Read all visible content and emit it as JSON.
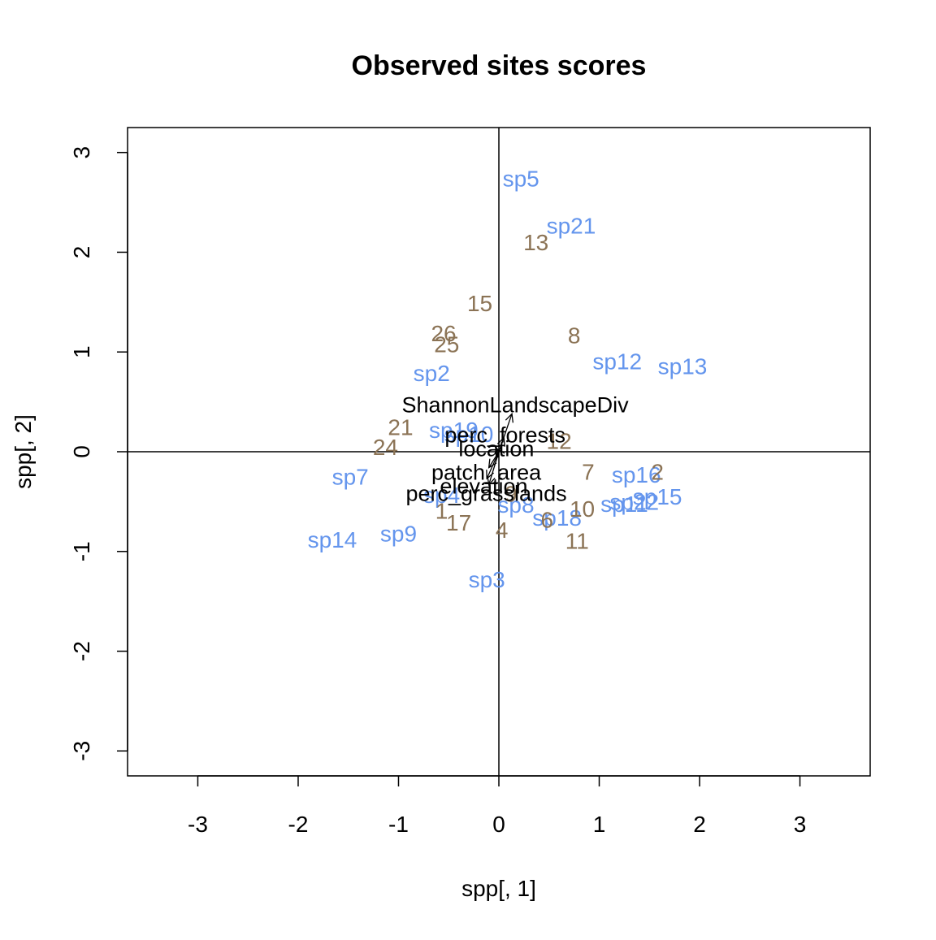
{
  "chart_data": {
    "type": "scatter",
    "title": "Observed sites scores",
    "xlabel": "spp[, 1]",
    "ylabel": "spp[, 2]",
    "xlim": [
      -3.7,
      3.7
    ],
    "ylim": [
      -3.25,
      3.25
    ],
    "xticks": [
      -3,
      -2,
      -1,
      0,
      1,
      2,
      3
    ],
    "yticks": [
      -3,
      -2,
      -1,
      0,
      1,
      2,
      3
    ],
    "reference_lines": {
      "x": 0,
      "y": 0
    },
    "colors": {
      "species": "#6495ED",
      "sites": "#8B7355",
      "env": "#000000"
    },
    "series": [
      {
        "role": "species",
        "points": [
          {
            "label": "sp5",
            "x": 0.22,
            "y": 2.74
          },
          {
            "label": "sp21",
            "x": 0.72,
            "y": 2.27
          },
          {
            "label": "sp12",
            "x": 1.18,
            "y": 0.91
          },
          {
            "label": "sp13",
            "x": 1.83,
            "y": 0.86
          },
          {
            "label": "sp2",
            "x": -0.67,
            "y": 0.79
          },
          {
            "label": "sp19",
            "x": -0.45,
            "y": 0.22
          },
          {
            "label": "sp10",
            "x": -0.3,
            "y": 0.18
          },
          {
            "label": "sp7",
            "x": -1.48,
            "y": -0.25
          },
          {
            "label": "sp16",
            "x": 1.37,
            "y": -0.23
          },
          {
            "label": "sp15",
            "x": 1.58,
            "y": -0.45
          },
          {
            "label": "sp22",
            "x": 1.35,
            "y": -0.5
          },
          {
            "label": "sp11",
            "x": 1.25,
            "y": -0.52
          },
          {
            "label": "sp4",
            "x": -0.57,
            "y": -0.43
          },
          {
            "label": "sp8",
            "x": 0.17,
            "y": -0.53
          },
          {
            "label": "sp18",
            "x": 0.58,
            "y": -0.66
          },
          {
            "label": "sp9",
            "x": -1.0,
            "y": -0.82
          },
          {
            "label": "sp14",
            "x": -1.66,
            "y": -0.88
          },
          {
            "label": "sp3",
            "x": -0.12,
            "y": -1.28
          }
        ]
      },
      {
        "role": "sites",
        "points": [
          {
            "label": "13",
            "x": 0.37,
            "y": 2.1
          },
          {
            "label": "15",
            "x": -0.19,
            "y": 1.49
          },
          {
            "label": "26",
            "x": -0.55,
            "y": 1.19
          },
          {
            "label": "25",
            "x": -0.52,
            "y": 1.08
          },
          {
            "label": "8",
            "x": 0.75,
            "y": 1.17
          },
          {
            "label": "21",
            "x": -0.98,
            "y": 0.25
          },
          {
            "label": "12",
            "x": 0.6,
            "y": 0.11
          },
          {
            "label": "24",
            "x": -1.13,
            "y": 0.05
          },
          {
            "label": "7",
            "x": 0.89,
            "y": -0.2
          },
          {
            "label": "2",
            "x": 1.58,
            "y": -0.2
          },
          {
            "label": "10",
            "x": 0.83,
            "y": -0.57
          },
          {
            "label": "9",
            "x": 0.12,
            "y": -0.42
          },
          {
            "label": "6",
            "x": 0.48,
            "y": -0.68
          },
          {
            "label": "4",
            "x": 0.03,
            "y": -0.78
          },
          {
            "label": "11",
            "x": 0.78,
            "y": -0.89
          },
          {
            "label": "17",
            "x": -0.4,
            "y": -0.71
          },
          {
            "label": "1",
            "x": -0.57,
            "y": -0.59
          }
        ]
      },
      {
        "role": "env",
        "arrows": [
          {
            "label": "ShannonLandscapeDiv",
            "x": 0.13,
            "y": 0.38
          },
          {
            "label": "perc_forests",
            "x": 0.05,
            "y": 0.14
          },
          {
            "label": "location",
            "x": -0.02,
            "y": 0.03
          },
          {
            "label": "patch_area",
            "x": -0.1,
            "y": -0.16
          },
          {
            "label": "elevation",
            "x": -0.12,
            "y": -0.27
          },
          {
            "label": "perc_grasslands",
            "x": -0.1,
            "y": -0.33
          }
        ]
      }
    ]
  }
}
